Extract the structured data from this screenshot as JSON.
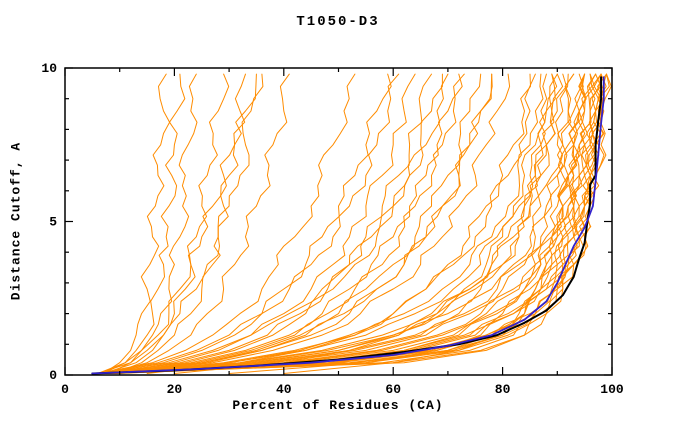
{
  "chart_data": {
    "type": "line",
    "title": "T1050-D3",
    "xlabel": "Percent of Residues (CA)",
    "ylabel": "Distance Cutoff, A",
    "xlim": [
      0,
      100
    ],
    "ylim": [
      0,
      10
    ],
    "x_major_ticks": [
      0,
      20,
      40,
      60,
      80,
      100
    ],
    "x_minor_step": 10,
    "y_major_ticks": [
      0,
      5,
      10
    ],
    "y_minor_step": 1,
    "grid": false,
    "legend": "none",
    "colors": {
      "ensemble": "#FF8C00",
      "black_model": "#000000",
      "blue_model": "#3322CC"
    },
    "y_knots": [
      0.05,
      0.4,
      0.8,
      1.3,
      2.0,
      2.8,
      3.6,
      4.5,
      5.5,
      6.5,
      7.5,
      8.6,
      9.8
    ],
    "ensemble_xs": [
      [
        7,
        10,
        12,
        13,
        14,
        15,
        15.5,
        16,
        16.5,
        17,
        17.5,
        18,
        18.5
      ],
      [
        6,
        11,
        13,
        15,
        16,
        17,
        18,
        18.5,
        19,
        19.5,
        20,
        20.5,
        21
      ],
      [
        8,
        12,
        14,
        16,
        17.5,
        19,
        20,
        21,
        21.5,
        22,
        22.5,
        23,
        24
      ],
      [
        7,
        13,
        16,
        18,
        20,
        22,
        23,
        24,
        25,
        26,
        27,
        28,
        29
      ],
      [
        9,
        14,
        17,
        20,
        23,
        25,
        27,
        28,
        29,
        30,
        31,
        32,
        33
      ],
      [
        6,
        12,
        15,
        18,
        21,
        24,
        26,
        28,
        30,
        32,
        33,
        34,
        36
      ],
      [
        8,
        15,
        19,
        23,
        26,
        29,
        31,
        33,
        35,
        37,
        38,
        40,
        41
      ],
      [
        7,
        11,
        14,
        17,
        19,
        21,
        23,
        25,
        27,
        29,
        31,
        33,
        35
      ],
      [
        6,
        16,
        22,
        27,
        32,
        36,
        39,
        42,
        45,
        47,
        49,
        51,
        53
      ],
      [
        7,
        18,
        25,
        31,
        36,
        40,
        44,
        47,
        50,
        53,
        55,
        57,
        59
      ],
      [
        8,
        20,
        28,
        34,
        40,
        45,
        49,
        52,
        55,
        58,
        60,
        62,
        64
      ],
      [
        6,
        22,
        31,
        38,
        44,
        49,
        53,
        57,
        60,
        63,
        65,
        67,
        69
      ],
      [
        7,
        24,
        34,
        42,
        48,
        53,
        58,
        61,
        64,
        67,
        69,
        71,
        73
      ],
      [
        9,
        26,
        36,
        45,
        52,
        57,
        62,
        66,
        69,
        72,
        74,
        76,
        78
      ],
      [
        6,
        19,
        27,
        34,
        41,
        47,
        52,
        56,
        60,
        63,
        66,
        68,
        70
      ],
      [
        8,
        23,
        33,
        41,
        47,
        52,
        56,
        60,
        63,
        66,
        68,
        70,
        72
      ],
      [
        7,
        21,
        30,
        37,
        43,
        48,
        52,
        55,
        58,
        61,
        63,
        65,
        67
      ],
      [
        9,
        25,
        35,
        43,
        50,
        55,
        60,
        64,
        67,
        70,
        72,
        74,
        76
      ],
      [
        6,
        17,
        24,
        30,
        36,
        41,
        45,
        49,
        52,
        55,
        57,
        59,
        61
      ],
      [
        8,
        27,
        38,
        47,
        54,
        60,
        65,
        69,
        72,
        75,
        77,
        79,
        81
      ],
      [
        6,
        30,
        44,
        55,
        64,
        71,
        76,
        79,
        82,
        84,
        86,
        87,
        88
      ],
      [
        7,
        32,
        47,
        58,
        67,
        74,
        78,
        81,
        84,
        86,
        87,
        88,
        89
      ],
      [
        8,
        34,
        50,
        61,
        70,
        76,
        80,
        83,
        85,
        87,
        88,
        89,
        90
      ],
      [
        6,
        36,
        52,
        64,
        72,
        78,
        82,
        85,
        87,
        89,
        90,
        91,
        92
      ],
      [
        7,
        38,
        55,
        66,
        74,
        80,
        84,
        87,
        89,
        90,
        91,
        92,
        93
      ],
      [
        9,
        40,
        57,
        68,
        76,
        82,
        86,
        88,
        90,
        91,
        92,
        93,
        94
      ],
      [
        6,
        42,
        60,
        71,
        78,
        84,
        87,
        89,
        91,
        92,
        93,
        94,
        95
      ],
      [
        8,
        44,
        62,
        73,
        80,
        85,
        88,
        90,
        92,
        93,
        94,
        95,
        96
      ],
      [
        7,
        46,
        64,
        75,
        82,
        87,
        90,
        92,
        93,
        94,
        95,
        96,
        97
      ],
      [
        6,
        48,
        66,
        77,
        84,
        88,
        91,
        93,
        94,
        95,
        96,
        97,
        98
      ],
      [
        8,
        50,
        68,
        78,
        85,
        89,
        92,
        94,
        95,
        96,
        97,
        97.5,
        98
      ],
      [
        7,
        52,
        70,
        80,
        86,
        90,
        93,
        94.5,
        96,
        96.5,
        97,
        98,
        99
      ],
      [
        9,
        29,
        42,
        53,
        62,
        69,
        74,
        78,
        81,
        83,
        85,
        86,
        87
      ],
      [
        6,
        33,
        48,
        60,
        69,
        75,
        80,
        83,
        85,
        87,
        88,
        90,
        91
      ],
      [
        8,
        37,
        53,
        65,
        73,
        79,
        83,
        86,
        88,
        90,
        91,
        92,
        93
      ],
      [
        7,
        41,
        58,
        69,
        77,
        83,
        86,
        89,
        91,
        92,
        93,
        94,
        95
      ],
      [
        9,
        45,
        63,
        74,
        81,
        86,
        89,
        91,
        93,
        94,
        95,
        96,
        97
      ],
      [
        6,
        49,
        67,
        77,
        84,
        88,
        91,
        93,
        95,
        96,
        96.5,
        97,
        98
      ],
      [
        7,
        53,
        71,
        80,
        86,
        89.5,
        91.5,
        93,
        94,
        95,
        96,
        97,
        98
      ],
      [
        8,
        55,
        72,
        81,
        86,
        90,
        92,
        94,
        95,
        96,
        97,
        98,
        99
      ],
      [
        6,
        58,
        74,
        82,
        87,
        90,
        93,
        95,
        96,
        97,
        97.5,
        98,
        99
      ],
      [
        9,
        60,
        76,
        84,
        88,
        91,
        93,
        95,
        96,
        97,
        98,
        98.5,
        99
      ],
      [
        7,
        45,
        62,
        72,
        79,
        84,
        87,
        89,
        91,
        92,
        93,
        94,
        95
      ],
      [
        8,
        35,
        50,
        60,
        68,
        74,
        78,
        82,
        84,
        86,
        88,
        89,
        90
      ],
      [
        6,
        25,
        36,
        44,
        51,
        57,
        62,
        66,
        69,
        72,
        74,
        76,
        78
      ],
      [
        9,
        55,
        70,
        78,
        83,
        87,
        89,
        91,
        92,
        93,
        94,
        95,
        96
      ],
      [
        7,
        62,
        77,
        84,
        88,
        91,
        93,
        94,
        95,
        96,
        96.5,
        97,
        98
      ],
      [
        8,
        30,
        43,
        52,
        60,
        66,
        71,
        75,
        78,
        81,
        83,
        85,
        86
      ],
      [
        30,
        55,
        68,
        76,
        82,
        86,
        88,
        90,
        91,
        92,
        93,
        94,
        95
      ],
      [
        40,
        60,
        72,
        79,
        84,
        87,
        90,
        91.5,
        93,
        94,
        95,
        96,
        97
      ],
      [
        20,
        40,
        52,
        61,
        68,
        73,
        77,
        80,
        83,
        85,
        87,
        88,
        89
      ],
      [
        15,
        32,
        44,
        53,
        60,
        66,
        70,
        74,
        77,
        80,
        82,
        84,
        85
      ]
    ],
    "highlight_series": [
      {
        "name": "black-model",
        "color": "#000000",
        "width": 2,
        "points": [
          [
            5,
            0.05
          ],
          [
            20,
            0.15
          ],
          [
            35,
            0.3
          ],
          [
            50,
            0.5
          ],
          [
            62,
            0.75
          ],
          [
            72,
            1.0
          ],
          [
            79,
            1.3
          ],
          [
            84,
            1.7
          ],
          [
            88,
            2.1
          ],
          [
            91,
            2.6
          ],
          [
            93,
            3.2
          ],
          [
            94,
            3.8
          ],
          [
            95,
            4.3
          ],
          [
            95.5,
            5.0
          ],
          [
            96,
            5.6
          ],
          [
            96,
            6.2
          ],
          [
            97,
            6.5
          ],
          [
            97,
            7.5
          ],
          [
            97.5,
            8.3
          ],
          [
            98,
            9.0
          ],
          [
            98,
            9.7
          ]
        ]
      },
      {
        "name": "blue-model",
        "color": "#3322CC",
        "width": 1.8,
        "points": [
          [
            5,
            0.05
          ],
          [
            25,
            0.2
          ],
          [
            45,
            0.4
          ],
          [
            60,
            0.65
          ],
          [
            70,
            0.95
          ],
          [
            78,
            1.3
          ],
          [
            84,
            1.8
          ],
          [
            88,
            2.4
          ],
          [
            90,
            3.0
          ],
          [
            91.5,
            3.6
          ],
          [
            93,
            4.2
          ],
          [
            95,
            4.8
          ],
          [
            96.5,
            5.5
          ],
          [
            97,
            6.3
          ],
          [
            97.5,
            7.2
          ],
          [
            98,
            8.2
          ],
          [
            98.5,
            9.0
          ],
          [
            98.5,
            9.7
          ]
        ]
      }
    ]
  }
}
